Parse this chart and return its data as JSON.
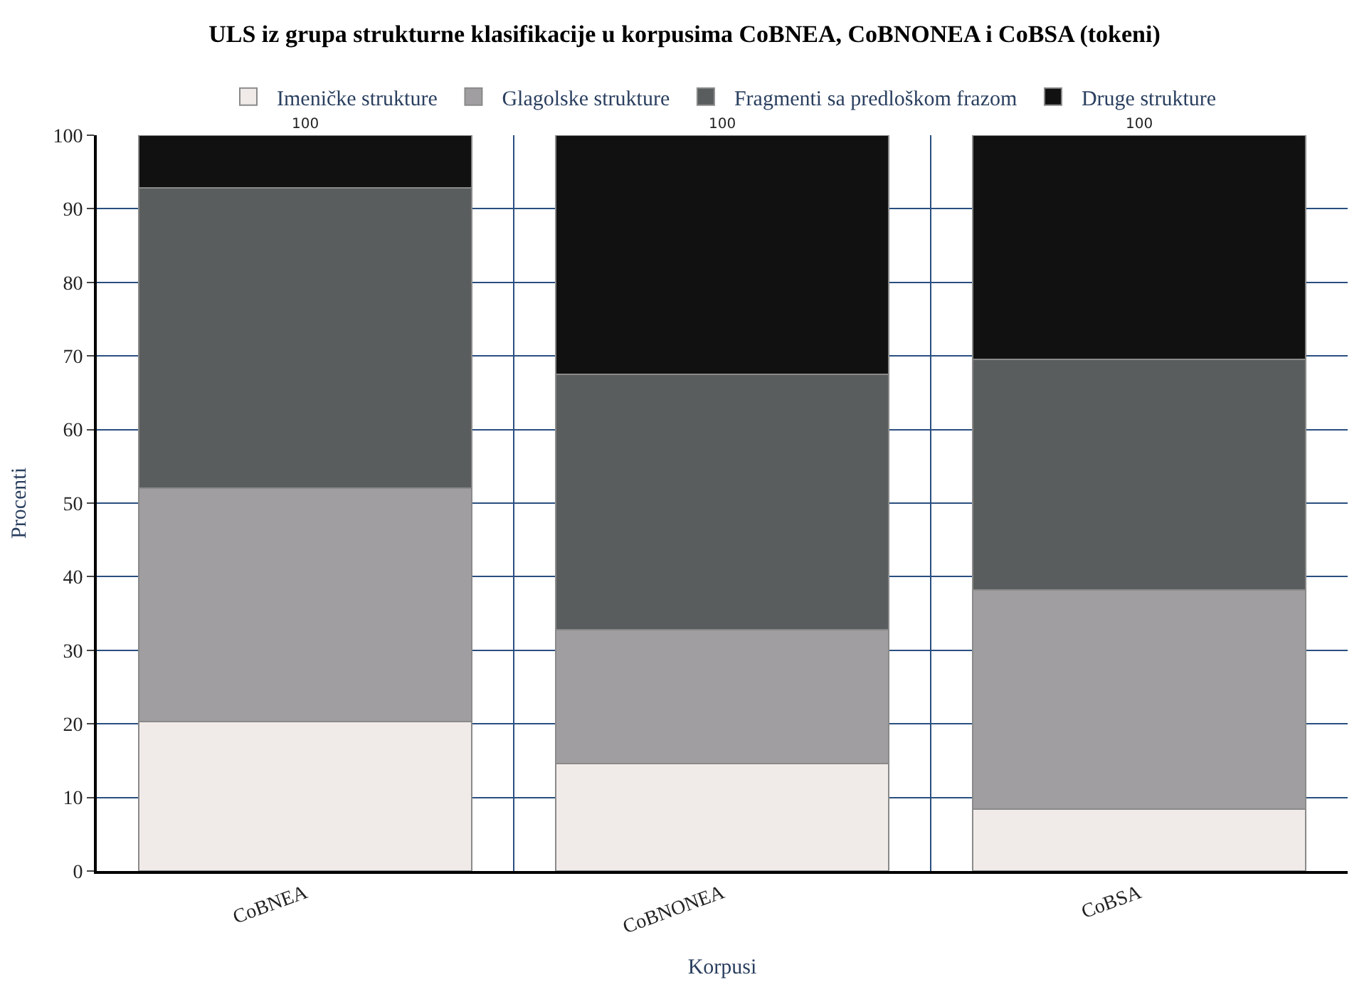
{
  "chart_data": {
    "type": "bar",
    "stacked": true,
    "title": "ULS iz grupa strukturne klasifikacije u korpusima CoBNEA, CoBNONEA i CoBSA (tokeni)",
    "xlabel": "Korpusi",
    "ylabel": "Procenti",
    "categories": [
      "CoBNEA",
      "CoBNONEA",
      "CoBSA"
    ],
    "series": [
      {
        "name": "Imeničke strukture",
        "color": "#f0ebe8",
        "values": [
          20.3,
          14.6,
          8.4
        ]
      },
      {
        "name": "Glagolske strukture",
        "color": "#a09ea1",
        "values": [
          31.7,
          18.2,
          29.8
        ]
      },
      {
        "name": "Fragmenti sa predloškom frazom",
        "color": "#5a5d5e",
        "values": [
          40.8,
          34.7,
          31.3
        ]
      },
      {
        "name": "Druge strukture",
        "color": "#111111",
        "values": [
          7.2,
          32.5,
          30.5
        ]
      }
    ],
    "totals": [
      "100",
      "100",
      "100"
    ],
    "ylim": [
      0,
      100
    ],
    "yticks": [
      0,
      10,
      20,
      30,
      40,
      50,
      60,
      70,
      80,
      90,
      100
    ],
    "grid": true,
    "legend": "top"
  }
}
